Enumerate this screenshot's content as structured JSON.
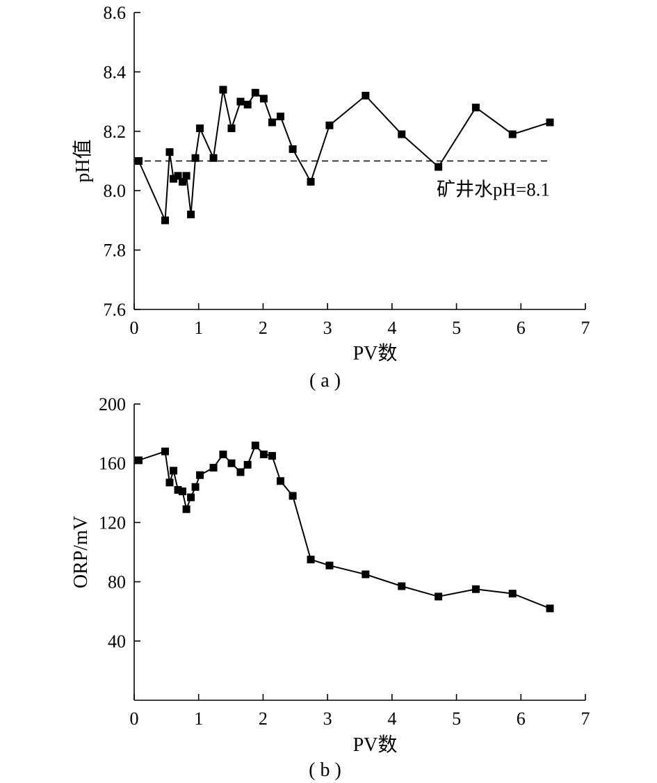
{
  "colors": {
    "line": "#000000",
    "marker": "#000000",
    "background": "#ffffff"
  },
  "chart_data": [
    {
      "type": "line",
      "panel_label": "( a )",
      "xlabel": "PV数",
      "ylabel": "pH值",
      "xlim": [
        0,
        7
      ],
      "ylim": [
        7.6,
        8.6
      ],
      "xticks": [
        "0",
        "1",
        "2",
        "3",
        "4",
        "5",
        "6",
        "7"
      ],
      "yticks": [
        "7.6",
        "7.8",
        "8.0",
        "8.2",
        "8.4",
        "8.6"
      ],
      "grid": false,
      "reference_line": {
        "y": 8.1,
        "style": "dashed",
        "label": "矿井水pH=8.1"
      },
      "series": [
        {
          "marker": "square",
          "x": [
            0.07,
            0.48,
            0.55,
            0.61,
            0.68,
            0.75,
            0.81,
            0.88,
            0.95,
            1.02,
            1.23,
            1.38,
            1.51,
            1.65,
            1.76,
            1.88,
            2.01,
            2.14,
            2.27,
            2.46,
            2.74,
            3.03,
            3.59,
            4.15,
            4.72,
            5.3,
            5.87,
            6.45
          ],
          "y": [
            8.1,
            7.9,
            8.13,
            8.04,
            8.05,
            8.03,
            8.05,
            7.92,
            8.11,
            8.21,
            8.11,
            8.34,
            8.21,
            8.3,
            8.29,
            8.33,
            8.31,
            8.23,
            8.25,
            8.14,
            8.03,
            8.22,
            8.32,
            8.19,
            8.08,
            8.28,
            8.19,
            8.23
          ]
        }
      ]
    },
    {
      "type": "line",
      "panel_label": "( b )",
      "xlabel": "PV数",
      "ylabel": "ORP/mV",
      "xlim": [
        0,
        7
      ],
      "ylim": [
        0,
        200
      ],
      "xticks": [
        "0",
        "1",
        "2",
        "3",
        "4",
        "5",
        "6",
        "7"
      ],
      "yticks": [
        "40",
        "80",
        "120",
        "160",
        "200"
      ],
      "grid": false,
      "series": [
        {
          "marker": "square",
          "x": [
            0.07,
            0.48,
            0.55,
            0.61,
            0.68,
            0.75,
            0.81,
            0.88,
            0.95,
            1.02,
            1.23,
            1.38,
            1.51,
            1.65,
            1.76,
            1.88,
            2.01,
            2.14,
            2.27,
            2.46,
            2.74,
            3.03,
            3.59,
            4.15,
            4.72,
            5.3,
            5.87,
            6.45
          ],
          "y": [
            162,
            168,
            147,
            155,
            142,
            141,
            129,
            137,
            144,
            152,
            157,
            166,
            160,
            154,
            159,
            172,
            166,
            165,
            148,
            138,
            95,
            91,
            85,
            77,
            70,
            75,
            72,
            62
          ]
        }
      ]
    }
  ]
}
